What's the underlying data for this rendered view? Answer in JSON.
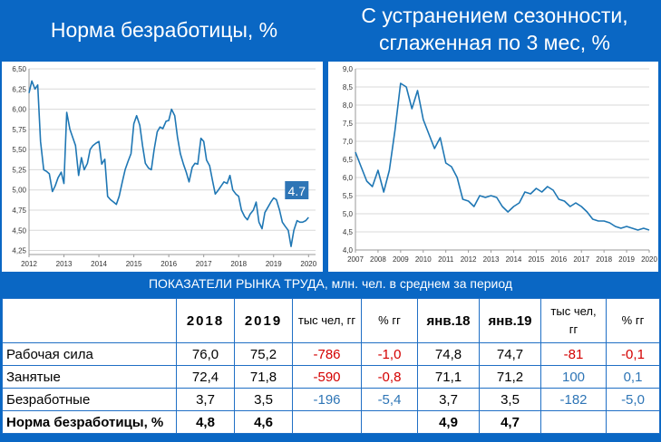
{
  "header": {
    "left_title": "Норма безработицы, %",
    "right_title_line1": "С устранением сезонности,",
    "right_title_line2": "сглаженная по 3 мес, %"
  },
  "chart_data": [
    {
      "type": "line",
      "color": "#1f77b4",
      "grid": true,
      "ylim": [
        4.2,
        6.5
      ],
      "y_ticks": [
        "6,50",
        "6,25",
        "6,00",
        "5,75",
        "5,50",
        "5,25",
        "5,00",
        "4,75",
        "4,50",
        "4,25"
      ],
      "x_ticks": [
        "2012",
        "2013",
        "2014",
        "2015",
        "2016",
        "2017",
        "2018",
        "2019",
        "2020"
      ],
      "xlim": [
        2012,
        2020.2
      ],
      "annotation": "4.7",
      "x": [
        2012.0,
        2012.08,
        2012.17,
        2012.25,
        2012.33,
        2012.42,
        2012.5,
        2012.58,
        2012.67,
        2012.75,
        2012.83,
        2012.92,
        2013.0,
        2013.08,
        2013.17,
        2013.25,
        2013.33,
        2013.42,
        2013.5,
        2013.58,
        2013.67,
        2013.75,
        2013.83,
        2013.92,
        2014.0,
        2014.08,
        2014.17,
        2014.25,
        2014.33,
        2014.42,
        2014.5,
        2014.58,
        2014.67,
        2014.75,
        2014.83,
        2014.92,
        2015.0,
        2015.08,
        2015.17,
        2015.25,
        2015.33,
        2015.42,
        2015.5,
        2015.58,
        2015.67,
        2015.75,
        2015.83,
        2015.92,
        2016.0,
        2016.08,
        2016.17,
        2016.25,
        2016.33,
        2016.42,
        2016.5,
        2016.58,
        2016.67,
        2016.75,
        2016.83,
        2016.92,
        2017.0,
        2017.08,
        2017.17,
        2017.25,
        2017.33,
        2017.42,
        2017.5,
        2017.58,
        2017.67,
        2017.75,
        2017.83,
        2017.92,
        2018.0,
        2018.08,
        2018.17,
        2018.25,
        2018.33,
        2018.42,
        2018.5,
        2018.58,
        2018.67,
        2018.75,
        2018.83,
        2018.92,
        2019.0,
        2019.08,
        2019.17,
        2019.25,
        2019.33,
        2019.42,
        2019.5,
        2019.58,
        2019.67,
        2019.75,
        2019.83,
        2019.92,
        2020.0
      ],
      "y": [
        6.2,
        6.35,
        6.25,
        6.3,
        5.6,
        5.25,
        5.23,
        5.2,
        4.98,
        5.05,
        5.15,
        5.22,
        5.08,
        5.96,
        5.75,
        5.65,
        5.55,
        5.18,
        5.4,
        5.25,
        5.33,
        5.5,
        5.55,
        5.58,
        5.6,
        5.32,
        5.38,
        4.92,
        4.88,
        4.85,
        4.82,
        4.92,
        5.1,
        5.25,
        5.35,
        5.45,
        5.82,
        5.92,
        5.8,
        5.55,
        5.33,
        5.27,
        5.25,
        5.5,
        5.72,
        5.78,
        5.76,
        5.85,
        5.86,
        6.0,
        5.92,
        5.65,
        5.45,
        5.32,
        5.22,
        5.1,
        5.28,
        5.33,
        5.32,
        5.64,
        5.6,
        5.37,
        5.3,
        5.12,
        4.95,
        5.0,
        5.05,
        5.1,
        5.08,
        5.18,
        5.0,
        4.95,
        4.92,
        4.75,
        4.67,
        4.63,
        4.7,
        4.75,
        4.85,
        4.6,
        4.52,
        4.72,
        4.78,
        4.85,
        4.9,
        4.88,
        4.75,
        4.6,
        4.55,
        4.5,
        4.3,
        4.5,
        4.62,
        4.6,
        4.6,
        4.62,
        4.66
      ]
    },
    {
      "type": "line",
      "color": "#1f77b4",
      "grid": true,
      "ylim": [
        4.0,
        9.0
      ],
      "y_ticks": [
        "9,0",
        "8,5",
        "8,0",
        "7,5",
        "7,0",
        "6,5",
        "6,0",
        "5,5",
        "5,0",
        "4,5",
        "4,0"
      ],
      "x_ticks": [
        "2007",
        "2008",
        "2009",
        "2010",
        "2011",
        "2012",
        "2013",
        "2014",
        "2015",
        "2016",
        "2017",
        "2018",
        "2019",
        "2020"
      ],
      "xlim": [
        2007,
        2020
      ],
      "x": [
        2007.0,
        2007.25,
        2007.5,
        2007.75,
        2008.0,
        2008.25,
        2008.5,
        2008.75,
        2009.0,
        2009.25,
        2009.5,
        2009.75,
        2010.0,
        2010.25,
        2010.5,
        2010.75,
        2011.0,
        2011.25,
        2011.5,
        2011.75,
        2012.0,
        2012.25,
        2012.5,
        2012.75,
        2013.0,
        2013.25,
        2013.5,
        2013.75,
        2014.0,
        2014.25,
        2014.5,
        2014.75,
        2015.0,
        2015.25,
        2015.5,
        2015.75,
        2016.0,
        2016.25,
        2016.5,
        2016.75,
        2017.0,
        2017.25,
        2017.5,
        2017.75,
        2018.0,
        2018.25,
        2018.5,
        2018.75,
        2019.0,
        2019.25,
        2019.5,
        2019.75,
        2020.0
      ],
      "y": [
        6.7,
        6.3,
        5.9,
        5.75,
        6.2,
        5.6,
        6.2,
        7.3,
        8.6,
        8.5,
        7.9,
        8.4,
        7.6,
        7.2,
        6.8,
        7.1,
        6.4,
        6.3,
        6.0,
        5.4,
        5.35,
        5.2,
        5.5,
        5.45,
        5.5,
        5.45,
        5.2,
        5.05,
        5.2,
        5.3,
        5.6,
        5.55,
        5.7,
        5.6,
        5.75,
        5.65,
        5.4,
        5.35,
        5.2,
        5.3,
        5.2,
        5.05,
        4.85,
        4.8,
        4.8,
        4.75,
        4.65,
        4.6,
        4.65,
        4.6,
        4.55,
        4.6,
        4.55
      ]
    }
  ],
  "table": {
    "caption": "ПОКАЗАТЕЛИ РЫНКА ТРУДА, млн. чел. в среднем за период",
    "headers": [
      "",
      "2018",
      "2019",
      "тыс чел, гг",
      "% гг",
      "янв.18",
      "янв.19",
      "тыс чел, гг",
      "% гг"
    ],
    "rows": [
      {
        "label": "Рабочая сила",
        "v2018": "76,0",
        "v2019": "75,2",
        "d_abs": "-786",
        "d_pct": "-1,0",
        "jan18": "74,8",
        "jan19": "74,7",
        "dj_abs": "-81",
        "dj_pct": "-0,1"
      },
      {
        "label": "Занятые",
        "v2018": "72,4",
        "v2019": "71,8",
        "d_abs": "-590",
        "d_pct": "-0,8",
        "jan18": "71,1",
        "jan19": "71,2",
        "dj_abs": "100",
        "dj_pct": "0,1"
      },
      {
        "label": "Безработные",
        "v2018": "3,7",
        "v2019": "3,5",
        "d_abs": "-196",
        "d_pct": "-5,4",
        "jan18": "3,7",
        "jan19": "3,5",
        "dj_abs": "-182",
        "dj_pct": "-5,0"
      },
      {
        "label": "Норма безработицы, %",
        "v2018": "4,8",
        "v2019": "4,6",
        "d_abs": "",
        "d_pct": "",
        "jan18": "4,9",
        "jan19": "4,7",
        "dj_abs": "",
        "dj_pct": ""
      }
    ]
  }
}
